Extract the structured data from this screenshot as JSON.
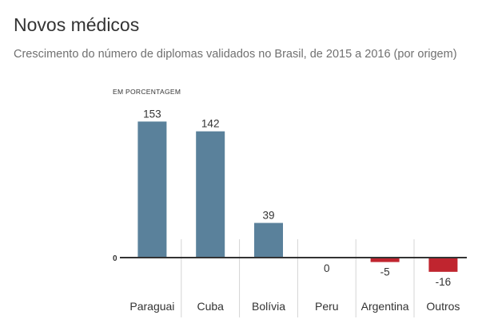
{
  "header": {
    "title": "Novos médicos",
    "subtitle": "Crescimento do número de diplomas validados no Brasil, de 2015 a 2016 (por origem)"
  },
  "chart_data": {
    "type": "bar",
    "title": "Novos médicos",
    "subtitle": "Crescimento do número de diplomas validados no Brasil, de 2015 a 2016 (por origem)",
    "ylabel": "EM PORCENTAGEM",
    "xlabel": "",
    "zero_label": "0",
    "categories": [
      "Paraguai",
      "Cuba",
      "Bolívia",
      "Peru",
      "Argentina",
      "Outros"
    ],
    "values": [
      153,
      142,
      39,
      0,
      -5,
      -16
    ],
    "value_labels": [
      "153",
      "142",
      "39",
      "0",
      "-5",
      "-16"
    ],
    "ylim": [
      -30,
      160
    ],
    "grid": false,
    "colors": {
      "positive": "#5a819b",
      "negative": "#c0252f",
      "axis": "#333333",
      "separator": "#d4d4d4"
    }
  }
}
